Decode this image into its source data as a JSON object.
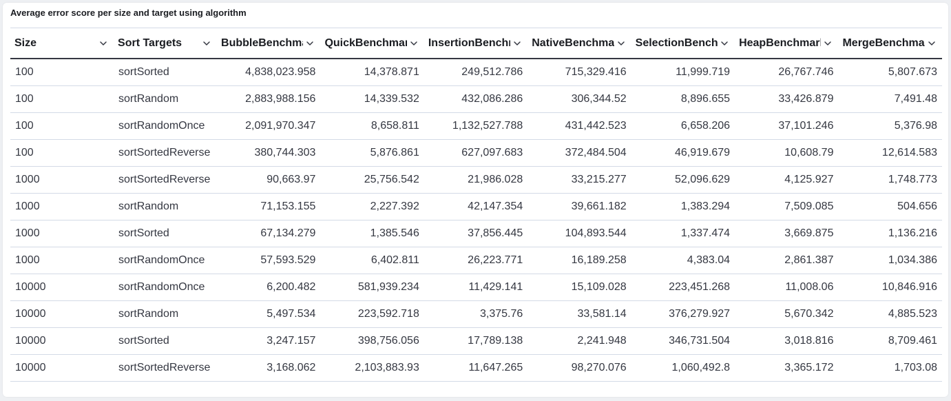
{
  "panel": {
    "title": "Average error score per size and target using algorithm"
  },
  "table": {
    "columns": [
      {
        "label": "Size",
        "align": "left"
      },
      {
        "label": "Sort Targets",
        "align": "left"
      },
      {
        "label": "BubbleBenchma",
        "align": "right"
      },
      {
        "label": "QuickBenchmar",
        "align": "right"
      },
      {
        "label": "InsertionBenchr",
        "align": "right"
      },
      {
        "label": "NativeBenchmai",
        "align": "right"
      },
      {
        "label": "SelectionBenchi",
        "align": "right"
      },
      {
        "label": "HeapBenchmark",
        "align": "right"
      },
      {
        "label": "MergeBenchmai",
        "align": "right"
      }
    ],
    "rows": [
      [
        "100",
        "sortSorted",
        "4,838,023.958",
        "14,378.871",
        "249,512.786",
        "715,329.416",
        "11,999.719",
        "26,767.746",
        "5,807.673"
      ],
      [
        "100",
        "sortRandom",
        "2,883,988.156",
        "14,339.532",
        "432,086.286",
        "306,344.52",
        "8,896.655",
        "33,426.879",
        "7,491.48"
      ],
      [
        "100",
        "sortRandomOnce",
        "2,091,970.347",
        "8,658.811",
        "1,132,527.788",
        "431,442.523",
        "6,658.206",
        "37,101.246",
        "5,376.98"
      ],
      [
        "100",
        "sortSortedReverse",
        "380,744.303",
        "5,876.861",
        "627,097.683",
        "372,484.504",
        "46,919.679",
        "10,608.79",
        "12,614.583"
      ],
      [
        "1000",
        "sortSortedReverse",
        "90,663.97",
        "25,756.542",
        "21,986.028",
        "33,215.277",
        "52,096.629",
        "4,125.927",
        "1,748.773"
      ],
      [
        "1000",
        "sortRandom",
        "71,153.155",
        "2,227.392",
        "42,147.354",
        "39,661.182",
        "1,383.294",
        "7,509.085",
        "504.656"
      ],
      [
        "1000",
        "sortSorted",
        "67,134.279",
        "1,385.546",
        "37,856.445",
        "104,893.544",
        "1,337.474",
        "3,669.875",
        "1,136.216"
      ],
      [
        "1000",
        "sortRandomOnce",
        "57,593.529",
        "6,402.811",
        "26,223.771",
        "16,189.258",
        "4,383.04",
        "2,861.387",
        "1,034.386"
      ],
      [
        "10000",
        "sortRandomOnce",
        "6,200.482",
        "581,939.234",
        "11,429.141",
        "15,109.028",
        "223,451.268",
        "11,008.06",
        "10,846.916"
      ],
      [
        "10000",
        "sortRandom",
        "5,497.534",
        "223,592.718",
        "3,375.76",
        "33,581.14",
        "376,279.927",
        "5,670.342",
        "4,885.523"
      ],
      [
        "10000",
        "sortSorted",
        "3,247.157",
        "398,756.056",
        "17,789.138",
        "2,241.948",
        "346,731.504",
        "3,018.816",
        "8,709.461"
      ],
      [
        "10000",
        "sortSortedReverse",
        "3,168.062",
        "2,103,883.93",
        "11,647.265",
        "98,270.076",
        "1,060,492.8",
        "3,365.172",
        "1,703.08"
      ]
    ]
  },
  "icons": {
    "column_menu": "chevron-down-icon"
  },
  "colors": {
    "text": "#343741",
    "header_text": "#1a1c21",
    "row_border": "#d3dae6",
    "header_border": "#343741",
    "page_background": "#eef0f3",
    "panel_background": "#ffffff"
  }
}
